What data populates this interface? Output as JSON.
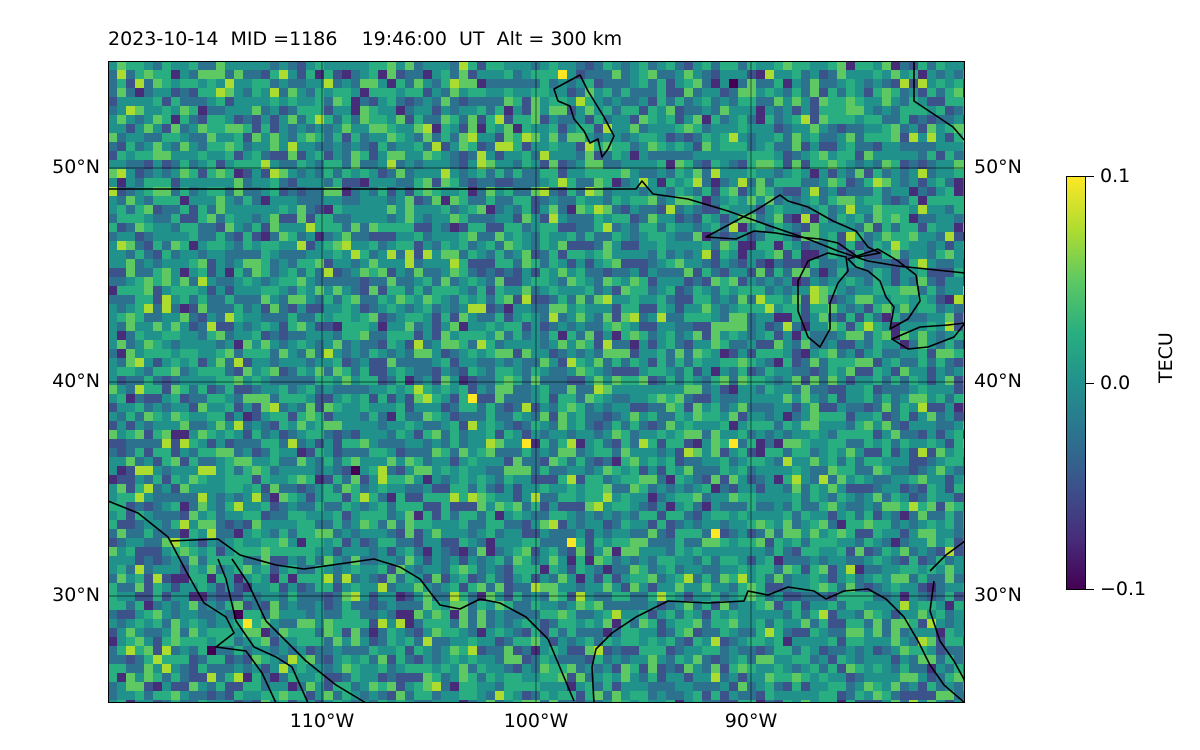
{
  "title": "2023-10-14  MID =1186    19:46:00  UT  Alt = 300 km",
  "map": {
    "lon_range": [
      -120,
      -80
    ],
    "lat_range": [
      25,
      55
    ],
    "gridlines": true,
    "field": "TEC perturbation",
    "lat_labels": [
      "50°N",
      "40°N",
      "30°N"
    ],
    "lon_labels": [
      "110°W",
      "100°W",
      "90°W"
    ]
  },
  "colorbar": {
    "label": "TECU",
    "ticks": [
      "0.1",
      "0.0",
      "−0.1"
    ],
    "min": -0.1,
    "max": 0.1,
    "colormap": "viridis"
  },
  "colors": {
    "coast": "#000000"
  }
}
